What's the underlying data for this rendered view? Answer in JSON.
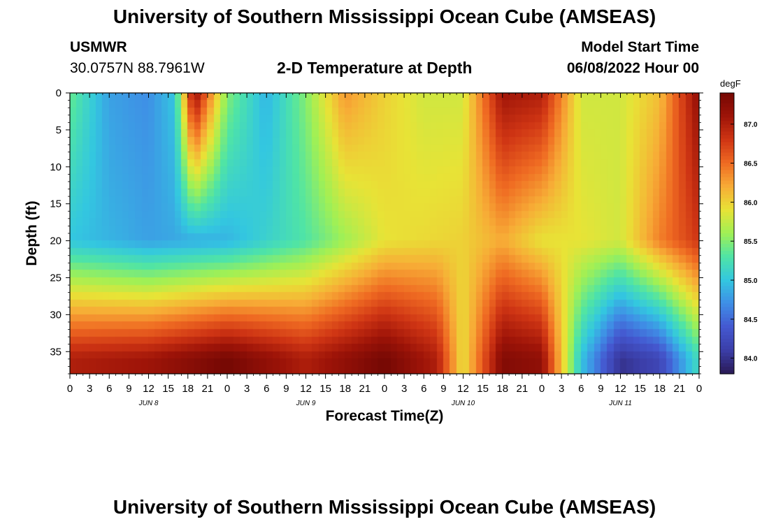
{
  "header": {
    "title": "University of Southern Mississippi Ocean Cube (AMSEAS)",
    "station": "USMWR",
    "coords": "30.0757N  88.7961W",
    "subtitle": "2-D Temperature at Depth",
    "model_start_label": "Model Start Time",
    "model_start_value": "06/08/2022 Hour 00"
  },
  "footer": {
    "title_repeat": "University of Southern Mississippi Ocean Cube (AMSEAS)"
  },
  "colors": {
    "palette": [
      "#2a1a55",
      "#3b3ea8",
      "#4458d0",
      "#3f8ee6",
      "#33c7e0",
      "#4fe4a6",
      "#a0f055",
      "#e8e336",
      "#f7ac36",
      "#ef6a22",
      "#cf3514",
      "#9e1408",
      "#750804"
    ]
  },
  "chart_data": {
    "type": "heatmap",
    "title": "2-D Temperature at Depth",
    "xlabel": "Forecast Time(Z)",
    "ylabel": "Depth (ft)",
    "x_tick_labels": [
      "0",
      "3",
      "6",
      "9",
      "12",
      "15",
      "18",
      "21",
      "0",
      "3",
      "6",
      "9",
      "12",
      "15",
      "18",
      "21",
      "0",
      "3",
      "6",
      "9",
      "12",
      "15",
      "18",
      "21",
      "0",
      "3",
      "6",
      "9",
      "12",
      "15",
      "18",
      "21",
      "0"
    ],
    "x_range_hours": [
      0,
      96
    ],
    "day_labels": [
      {
        "label": "JUN 8",
        "hour": 12
      },
      {
        "label": "JUN 9",
        "hour": 36
      },
      {
        "label": "JUN 10",
        "hour": 60
      },
      {
        "label": "JUN 11",
        "hour": 84
      }
    ],
    "y_ticks": [
      0,
      5,
      10,
      15,
      20,
      25,
      30,
      35
    ],
    "y_range_ft": [
      0,
      38
    ],
    "colorbar": {
      "unit": "degF",
      "range": [
        83.8,
        87.4
      ],
      "ticks": [
        "87.0",
        "86.5",
        "86.0",
        "85.5",
        "85.0",
        "84.5",
        "84.0"
      ],
      "tick_values": [
        87.0,
        86.5,
        86.0,
        85.5,
        85.0,
        84.5,
        84.0
      ]
    },
    "approx_temperature_degF": {
      "surface_0ft": {
        "hours": [
          0,
          6,
          12,
          16,
          19,
          24,
          30,
          36,
          42,
          48,
          54,
          60,
          66,
          72,
          78,
          84,
          90,
          96
        ],
        "values": [
          85.4,
          84.8,
          84.7,
          85.0,
          87.2,
          85.5,
          84.9,
          85.5,
          86.3,
          86.0,
          85.8,
          85.8,
          87.1,
          87.0,
          85.8,
          85.8,
          86.1,
          87.2
        ]
      },
      "depth_20ft": {
        "hours": [
          0,
          12,
          24,
          36,
          48,
          60,
          66,
          72,
          78,
          84,
          90,
          96
        ],
        "values": [
          85.0,
          84.8,
          84.9,
          85.3,
          85.9,
          86.0,
          86.2,
          85.9,
          85.9,
          85.8,
          86.4,
          86.8
        ]
      },
      "depth_36ft": {
        "hours": [
          0,
          12,
          24,
          36,
          48,
          56,
          60,
          66,
          72,
          78,
          84,
          90,
          96
        ],
        "values": [
          87.0,
          87.1,
          87.4,
          87.0,
          87.4,
          87.0,
          85.9,
          87.3,
          87.2,
          85.0,
          84.0,
          84.2,
          85.2
        ]
      }
    }
  }
}
